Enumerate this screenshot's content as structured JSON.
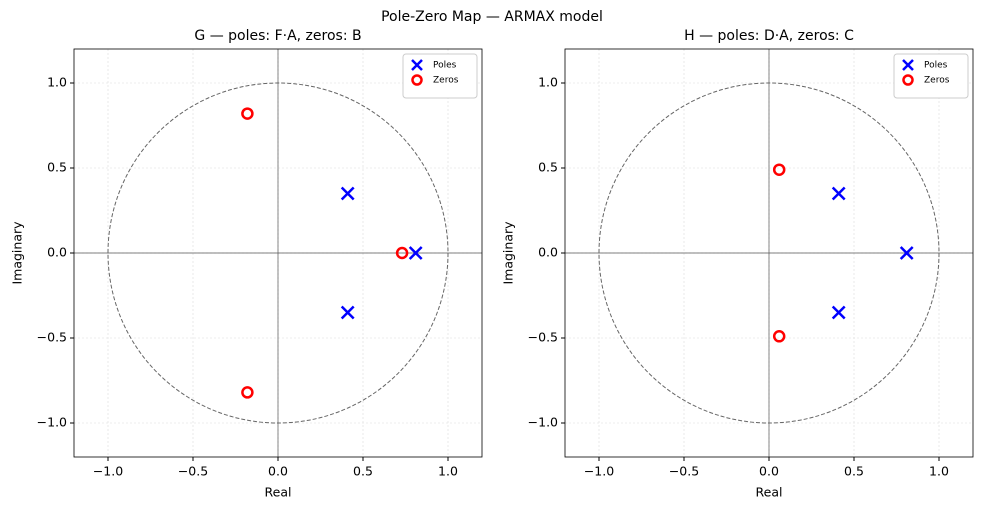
{
  "title": "Pole-Zero Map  —  ARMAX model",
  "chart_data": [
    {
      "type": "scatter",
      "title": "G  —  poles: F·A,  zeros: B",
      "xlabel": "Real",
      "ylabel": "Imaginary",
      "xlim": [
        -1.2,
        1.2
      ],
      "ylim": [
        -1.2,
        1.2
      ],
      "xticks": [
        {
          "value": -1.0,
          "label": "−1.0"
        },
        {
          "value": -0.5,
          "label": "−0.5"
        },
        {
          "value": 0,
          "label": "0.0"
        },
        {
          "value": 0.5,
          "label": "0.5"
        },
        {
          "value": 1.0,
          "label": "1.0"
        }
      ],
      "yticks": [
        {
          "value": -1.0,
          "label": "−1.0"
        },
        {
          "value": -0.5,
          "label": "−0.5"
        },
        {
          "value": 0,
          "label": "0.0"
        },
        {
          "value": 0.5,
          "label": "0.5"
        },
        {
          "value": 1.0,
          "label": "1.0"
        }
      ],
      "grid": true,
      "unit_circle": true,
      "legend": "upper right",
      "series": [
        {
          "name": "Poles",
          "color": "#0000ff",
          "marker": "x",
          "x": [
            0.41,
            0.41,
            0.81
          ],
          "values": [
            0.35,
            -0.35,
            0
          ]
        },
        {
          "name": "Zeros",
          "color": "#ff0000",
          "marker": "o",
          "x": [
            -0.18,
            -0.18,
            0.73
          ],
          "values": [
            0.82,
            -0.82,
            0
          ]
        }
      ]
    },
    {
      "type": "scatter",
      "title": "H  —  poles: D·A,  zeros: C",
      "xlabel": "Real",
      "ylabel": "Imaginary",
      "xlim": [
        -1.2,
        1.2
      ],
      "ylim": [
        -1.2,
        1.2
      ],
      "xticks": [
        {
          "value": -1.0,
          "label": "−1.0"
        },
        {
          "value": -0.5,
          "label": "−0.5"
        },
        {
          "value": 0,
          "label": "0.0"
        },
        {
          "value": 0.5,
          "label": "0.5"
        },
        {
          "value": 1.0,
          "label": "1.0"
        }
      ],
      "yticks": [
        {
          "value": -1.0,
          "label": "−1.0"
        },
        {
          "value": -0.5,
          "label": "−0.5"
        },
        {
          "value": 0,
          "label": "0.0"
        },
        {
          "value": 0.5,
          "label": "0.5"
        },
        {
          "value": 1.0,
          "label": "1.0"
        }
      ],
      "grid": true,
      "unit_circle": true,
      "legend": "upper right",
      "series": [
        {
          "name": "Poles",
          "color": "#0000ff",
          "marker": "x",
          "x": [
            0.41,
            0.41,
            0.81
          ],
          "values": [
            0.35,
            -0.35,
            0
          ]
        },
        {
          "name": "Zeros",
          "color": "#ff0000",
          "marker": "o",
          "x": [
            0.06,
            0.06
          ],
          "values": [
            0.49,
            -0.49
          ]
        }
      ]
    }
  ]
}
